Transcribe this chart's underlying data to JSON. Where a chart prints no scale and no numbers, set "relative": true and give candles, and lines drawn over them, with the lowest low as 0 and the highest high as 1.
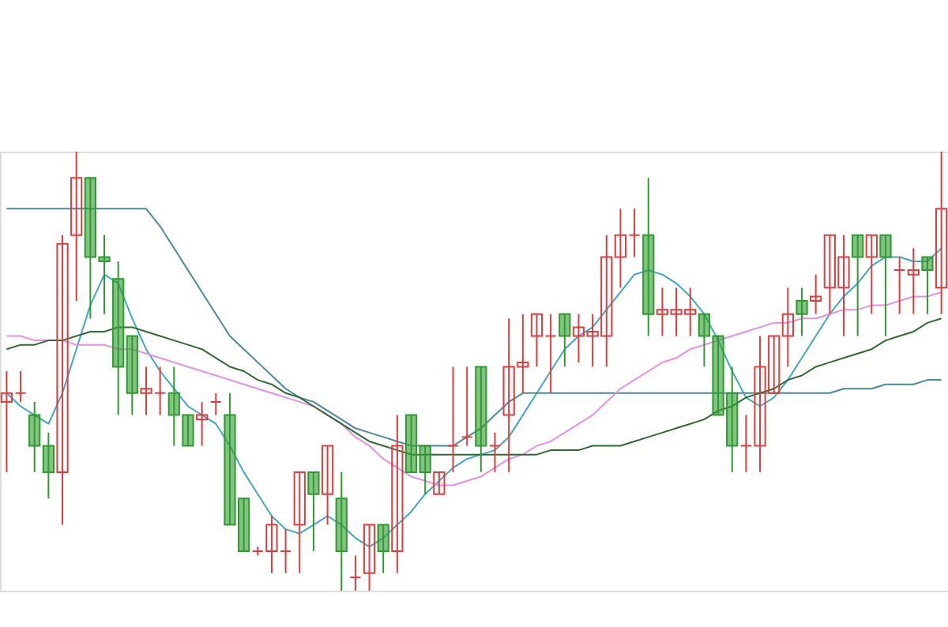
{
  "chart_data": {
    "type": "candlestick",
    "relative": true,
    "categories": [
      null,
      null,
      null,
      null,
      null,
      null,
      null,
      null,
      null,
      null,
      null,
      null,
      null,
      null,
      null,
      null,
      null,
      null,
      null,
      null,
      null,
      null,
      null,
      null,
      null,
      null,
      null,
      null,
      null,
      null,
      null,
      null,
      null,
      null,
      null,
      null,
      null,
      null,
      null,
      null,
      null,
      null,
      null,
      null,
      null,
      null,
      null,
      null,
      null,
      null,
      null,
      null,
      null,
      null,
      null,
      null,
      null,
      null,
      null,
      null,
      null,
      null,
      null,
      null,
      null,
      null,
      null,
      null
    ],
    "ohlc": [
      [
        0.43,
        0.5,
        0.27,
        0.45
      ],
      [
        0.45,
        0.5,
        0.43,
        0.45
      ],
      [
        0.4,
        0.43,
        0.27,
        0.33
      ],
      [
        0.33,
        0.36,
        0.21,
        0.27
      ],
      [
        0.27,
        0.81,
        0.15,
        0.79
      ],
      [
        0.81,
        1.0,
        0.66,
        0.94
      ],
      [
        0.94,
        0.94,
        0.62,
        0.76
      ],
      [
        0.76,
        0.81,
        0.63,
        0.75
      ],
      [
        0.71,
        0.75,
        0.4,
        0.51
      ],
      [
        0.58,
        0.58,
        0.4,
        0.45
      ],
      [
        0.45,
        0.51,
        0.4,
        0.46
      ],
      [
        0.45,
        0.51,
        0.4,
        0.45
      ],
      [
        0.45,
        0.51,
        0.33,
        0.4
      ],
      [
        0.4,
        0.4,
        0.33,
        0.33
      ],
      [
        0.39,
        0.43,
        0.33,
        0.4
      ],
      [
        0.43,
        0.45,
        0.4,
        0.43
      ],
      [
        0.4,
        0.45,
        0.15,
        0.15
      ],
      [
        0.21,
        0.21,
        0.09,
        0.09
      ],
      [
        0.09,
        0.1,
        0.08,
        0.09
      ],
      [
        0.09,
        0.17,
        0.04,
        0.15
      ],
      [
        0.09,
        0.14,
        0.04,
        0.09
      ],
      [
        0.15,
        0.27,
        0.04,
        0.27
      ],
      [
        0.27,
        0.27,
        0.09,
        0.22
      ],
      [
        0.22,
        0.33,
        0.15,
        0.33
      ],
      [
        0.21,
        0.27,
        0,
        0.09
      ],
      [
        0.03,
        0.08,
        0,
        0.03
      ],
      [
        0.04,
        0.15,
        0,
        0.15
      ],
      [
        0.15,
        0.15,
        0.04,
        0.09
      ],
      [
        0.09,
        0.4,
        0.04,
        0.33
      ],
      [
        0.4,
        0.4,
        0.27,
        0.27
      ],
      [
        0.33,
        0.33,
        0.22,
        0.27
      ],
      [
        0.22,
        0.27,
        0.22,
        0.27
      ],
      [
        0.33,
        0.51,
        0.27,
        0.33
      ],
      [
        0.35,
        0.51,
        0.33,
        0.35
      ],
      [
        0.51,
        0.51,
        0.27,
        0.33
      ],
      [
        0.33,
        0.36,
        0.27,
        0.33
      ],
      [
        0.4,
        0.62,
        0.27,
        0.51
      ],
      [
        0.51,
        0.63,
        0.45,
        0.52
      ],
      [
        0.58,
        0.63,
        0.51,
        0.63
      ],
      [
        0.58,
        0.63,
        0.45,
        0.58
      ],
      [
        0.63,
        0.63,
        0.51,
        0.58
      ],
      [
        0.58,
        0.63,
        0.52,
        0.6
      ],
      [
        0.58,
        0.63,
        0.51,
        0.59
      ],
      [
        0.58,
        0.81,
        0.51,
        0.76
      ],
      [
        0.76,
        0.87,
        0.69,
        0.81
      ],
      [
        0.81,
        0.87,
        0.76,
        0.81
      ],
      [
        0.81,
        0.94,
        0.58,
        0.63
      ],
      [
        0.63,
        0.69,
        0.58,
        0.64
      ],
      [
        0.63,
        0.69,
        0.58,
        0.64
      ],
      [
        0.63,
        0.69,
        0.58,
        0.64
      ],
      [
        0.63,
        0.63,
        0.51,
        0.58
      ],
      [
        0.58,
        0.58,
        0.4,
        0.4
      ],
      [
        0.45,
        0.51,
        0.27,
        0.33
      ],
      [
        0.33,
        0.4,
        0.27,
        0.33
      ],
      [
        0.33,
        0.58,
        0.27,
        0.51
      ],
      [
        0.45,
        0.58,
        0.45,
        0.58
      ],
      [
        0.58,
        0.69,
        0.51,
        0.63
      ],
      [
        0.66,
        0.69,
        0.58,
        0.63
      ],
      [
        0.66,
        0.72,
        0.63,
        0.67
      ],
      [
        0.69,
        0.81,
        0.63,
        0.81
      ],
      [
        0.69,
        0.81,
        0.58,
        0.76
      ],
      [
        0.81,
        0.81,
        0.58,
        0.76
      ],
      [
        0.76,
        0.81,
        0.63,
        0.81
      ],
      [
        0.81,
        0.81,
        0.58,
        0.76
      ],
      [
        0.73,
        0.76,
        0.63,
        0.73
      ],
      [
        0.72,
        0.78,
        0.63,
        0.73
      ],
      [
        0.76,
        0.76,
        0.63,
        0.73
      ],
      [
        0.69,
        1.0,
        0.63,
        0.87
      ]
    ],
    "colors": [
      "#e03c3c",
      "#e03c3c",
      "#2e9b2e",
      "#2e9b2e",
      "#e03c3c",
      "#e03c3c",
      "#2e9b2e",
      "#2e9b2e",
      "#2e9b2e",
      "#2e9b2e",
      "#e03c3c",
      "#e03c3c",
      "#2e9b2e",
      "#2e9b2e",
      "#e03c3c",
      "#e03c3c",
      "#2e9b2e",
      "#2e9b2e",
      "#e03c3c",
      "#e03c3c",
      "#e03c3c",
      "#e03c3c",
      "#2e9b2e",
      "#e03c3c",
      "#2e9b2e",
      "#e03c3c",
      "#e03c3c",
      "#2e9b2e",
      "#e03c3c",
      "#2e9b2e",
      "#2e9b2e",
      "#e03c3c",
      "#e03c3c",
      "#e03c3c",
      "#2e9b2e",
      "#e03c3c",
      "#e03c3c",
      "#e03c3c",
      "#e03c3c",
      "#e03c3c",
      "#2e9b2e",
      "#e03c3c",
      "#e03c3c",
      "#e03c3c",
      "#e03c3c",
      "#e03c3c",
      "#2e9b2e",
      "#e03c3c",
      "#e03c3c",
      "#e03c3c",
      "#2e9b2e",
      "#2e9b2e",
      "#2e9b2e",
      "#e03c3c",
      "#e03c3c",
      "#e03c3c",
      "#e03c3c",
      "#2e9b2e",
      "#e03c3c",
      "#e03c3c",
      "#e03c3c",
      "#2e9b2e",
      "#e03c3c",
      "#2e9b2e",
      "#e03c3c",
      "#e03c3c",
      "#2e9b2e",
      "#e03c3c"
    ],
    "series": [
      {
        "type": "line",
        "color": "#3fa7c4",
        "values": [
          0.45,
          0.42,
          0.4,
          0.38,
          0.45,
          0.55,
          0.65,
          0.72,
          0.7,
          0.62,
          0.55,
          0.5,
          0.46,
          0.42,
          0.4,
          0.38,
          0.33,
          0.27,
          0.22,
          0.17,
          0.14,
          0.13,
          0.15,
          0.17,
          0.15,
          0.12,
          0.1,
          0.12,
          0.15,
          0.18,
          0.22,
          0.25,
          0.28,
          0.3,
          0.31,
          0.32,
          0.35,
          0.4,
          0.45,
          0.5,
          0.55,
          0.58,
          0.6,
          0.64,
          0.68,
          0.72,
          0.73,
          0.72,
          0.7,
          0.67,
          0.63,
          0.57,
          0.5,
          0.44,
          0.42,
          0.44,
          0.48,
          0.53,
          0.58,
          0.63,
          0.67,
          0.7,
          0.74,
          0.76,
          0.76,
          0.75,
          0.75,
          0.78
        ]
      },
      {
        "type": "line",
        "color": "#4a8a9a",
        "values": [
          0.87,
          0.87,
          0.87,
          0.87,
          0.87,
          0.87,
          0.87,
          0.87,
          0.87,
          0.87,
          0.87,
          0.83,
          0.78,
          0.73,
          0.68,
          0.63,
          0.58,
          0.55,
          0.52,
          0.49,
          0.46,
          0.44,
          0.43,
          0.41,
          0.39,
          0.37,
          0.36,
          0.35,
          0.34,
          0.33,
          0.33,
          0.33,
          0.33,
          0.35,
          0.37,
          0.4,
          0.43,
          0.45,
          0.45,
          0.45,
          0.45,
          0.45,
          0.45,
          0.45,
          0.45,
          0.45,
          0.45,
          0.45,
          0.45,
          0.45,
          0.45,
          0.45,
          0.45,
          0.45,
          0.45,
          0.45,
          0.45,
          0.45,
          0.45,
          0.45,
          0.46,
          0.46,
          0.46,
          0.47,
          0.47,
          0.47,
          0.48,
          0.48
        ]
      },
      {
        "type": "line",
        "color": "#e58ee5",
        "values": [
          0.58,
          0.58,
          0.57,
          0.57,
          0.57,
          0.56,
          0.56,
          0.56,
          0.55,
          0.55,
          0.54,
          0.53,
          0.52,
          0.51,
          0.5,
          0.49,
          0.48,
          0.47,
          0.46,
          0.45,
          0.44,
          0.43,
          0.42,
          0.4,
          0.38,
          0.35,
          0.33,
          0.3,
          0.28,
          0.26,
          0.25,
          0.24,
          0.24,
          0.25,
          0.26,
          0.28,
          0.3,
          0.31,
          0.33,
          0.34,
          0.36,
          0.38,
          0.4,
          0.43,
          0.46,
          0.48,
          0.5,
          0.52,
          0.53,
          0.55,
          0.56,
          0.57,
          0.58,
          0.59,
          0.6,
          0.61,
          0.61,
          0.62,
          0.62,
          0.63,
          0.64,
          0.64,
          0.65,
          0.65,
          0.66,
          0.67,
          0.67,
          0.68
        ]
      },
      {
        "type": "line",
        "color": "#2f6b2f",
        "values": [
          0.55,
          0.56,
          0.56,
          0.57,
          0.57,
          0.58,
          0.59,
          0.59,
          0.6,
          0.6,
          0.59,
          0.58,
          0.57,
          0.56,
          0.55,
          0.53,
          0.51,
          0.5,
          0.48,
          0.47,
          0.45,
          0.44,
          0.42,
          0.4,
          0.38,
          0.36,
          0.34,
          0.33,
          0.32,
          0.31,
          0.31,
          0.31,
          0.31,
          0.31,
          0.31,
          0.31,
          0.31,
          0.31,
          0.31,
          0.32,
          0.32,
          0.32,
          0.33,
          0.33,
          0.33,
          0.34,
          0.35,
          0.36,
          0.37,
          0.38,
          0.39,
          0.41,
          0.42,
          0.44,
          0.45,
          0.46,
          0.48,
          0.49,
          0.51,
          0.52,
          0.53,
          0.54,
          0.55,
          0.57,
          0.58,
          0.59,
          0.61,
          0.62
        ]
      }
    ]
  }
}
